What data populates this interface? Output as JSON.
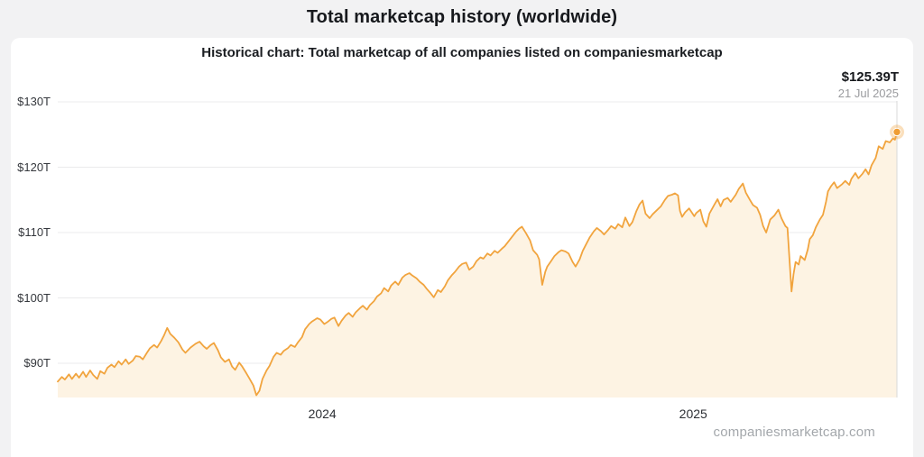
{
  "page": {
    "title": "Total marketcap history (worldwide)",
    "watermark": "companiesmarketcap.com"
  },
  "card": {
    "subtitle": "Historical chart: Total marketcap of all companies listed on companiesmarketcap"
  },
  "readout": {
    "value": "$125.39T",
    "date": "21 Jul 2025"
  },
  "colors": {
    "page_bg": "#f2f2f3",
    "card_bg": "#ffffff",
    "line": "#f1a43e",
    "fill": "#fdf3e3",
    "marker": "#ef9d33",
    "marker_halo": "rgba(241,164,62,0.35)",
    "gridline": "#ebebec",
    "crosshair": "#d8d8d8",
    "muted_text": "#9a9b9e"
  },
  "chart_data": {
    "type": "area",
    "title": "Total marketcap history (worldwide)",
    "subtitle": "Historical chart: Total marketcap of all companies listed on companiesmarketcap",
    "unit": "trillion USD",
    "grid": true,
    "legend": "none",
    "x_range": [
      "2023-04-15",
      "2025-07-21"
    ],
    "ylim": [
      84.5,
      131.8
    ],
    "y_ticks": [
      {
        "label": "$130T",
        "value": 130
      },
      {
        "label": "$120T",
        "value": 120
      },
      {
        "label": "$110T",
        "value": 110
      },
      {
        "label": "$100T",
        "value": 100
      },
      {
        "label": "$90T",
        "value": 90
      }
    ],
    "x_ticks": [
      {
        "label": "2024",
        "date": "2024-01-01"
      },
      {
        "label": "2025",
        "date": "2025-01-01"
      }
    ],
    "last_point": {
      "date": "2025-07-21",
      "value": 125.39,
      "display_value": "$125.39T",
      "display_date": "21 Jul 2025"
    },
    "series": [
      {
        "name": "Total marketcap of all companies",
        "points": [
          [
            "2023-04-15",
            87.2
          ],
          [
            "2023-04-19",
            87.9
          ],
          [
            "2023-04-22",
            87.5
          ],
          [
            "2023-04-26",
            88.3
          ],
          [
            "2023-04-29",
            87.6
          ],
          [
            "2023-05-03",
            88.4
          ],
          [
            "2023-05-06",
            87.8
          ],
          [
            "2023-05-10",
            88.7
          ],
          [
            "2023-05-13",
            87.9
          ],
          [
            "2023-05-17",
            88.9
          ],
          [
            "2023-05-20",
            88.2
          ],
          [
            "2023-05-24",
            87.6
          ],
          [
            "2023-05-27",
            88.8
          ],
          [
            "2023-05-31",
            88.4
          ],
          [
            "2023-06-03",
            89.3
          ],
          [
            "2023-06-07",
            89.8
          ],
          [
            "2023-06-10",
            89.4
          ],
          [
            "2023-06-14",
            90.3
          ],
          [
            "2023-06-17",
            89.8
          ],
          [
            "2023-06-21",
            90.6
          ],
          [
            "2023-06-24",
            89.9
          ],
          [
            "2023-06-28",
            90.4
          ],
          [
            "2023-07-01",
            91.1
          ],
          [
            "2023-07-05",
            91.0
          ],
          [
            "2023-07-08",
            90.6
          ],
          [
            "2023-07-12",
            91.6
          ],
          [
            "2023-07-15",
            92.3
          ],
          [
            "2023-07-19",
            92.8
          ],
          [
            "2023-07-22",
            92.4
          ],
          [
            "2023-07-26",
            93.4
          ],
          [
            "2023-07-29",
            94.3
          ],
          [
            "2023-08-01",
            95.4
          ],
          [
            "2023-08-04",
            94.5
          ],
          [
            "2023-08-08",
            93.9
          ],
          [
            "2023-08-12",
            93.2
          ],
          [
            "2023-08-16",
            92.1
          ],
          [
            "2023-08-19",
            91.6
          ],
          [
            "2023-08-24",
            92.4
          ],
          [
            "2023-08-29",
            93.0
          ],
          [
            "2023-09-02",
            93.3
          ],
          [
            "2023-09-06",
            92.6
          ],
          [
            "2023-09-09",
            92.2
          ],
          [
            "2023-09-13",
            92.8
          ],
          [
            "2023-09-16",
            93.1
          ],
          [
            "2023-09-20",
            92.0
          ],
          [
            "2023-09-23",
            90.9
          ],
          [
            "2023-09-27",
            90.2
          ],
          [
            "2023-10-01",
            90.6
          ],
          [
            "2023-10-04",
            89.5
          ],
          [
            "2023-10-07",
            89.0
          ],
          [
            "2023-10-11",
            90.1
          ],
          [
            "2023-10-14",
            89.5
          ],
          [
            "2023-10-18",
            88.5
          ],
          [
            "2023-10-21",
            87.7
          ],
          [
            "2023-10-25",
            86.6
          ],
          [
            "2023-10-28",
            85.1
          ],
          [
            "2023-10-31",
            85.8
          ],
          [
            "2023-11-03",
            87.6
          ],
          [
            "2023-11-07",
            88.9
          ],
          [
            "2023-11-10",
            89.6
          ],
          [
            "2023-11-14",
            91.0
          ],
          [
            "2023-11-17",
            91.6
          ],
          [
            "2023-11-21",
            91.3
          ],
          [
            "2023-11-24",
            91.9
          ],
          [
            "2023-11-28",
            92.3
          ],
          [
            "2023-12-01",
            92.8
          ],
          [
            "2023-12-05",
            92.5
          ],
          [
            "2023-12-08",
            93.2
          ],
          [
            "2023-12-12",
            94.0
          ],
          [
            "2023-12-15",
            95.2
          ],
          [
            "2023-12-19",
            96.0
          ],
          [
            "2023-12-22",
            96.4
          ],
          [
            "2023-12-27",
            96.9
          ],
          [
            "2023-12-30",
            96.7
          ],
          [
            "2024-01-03",
            96.0
          ],
          [
            "2024-01-06",
            96.3
          ],
          [
            "2024-01-10",
            96.8
          ],
          [
            "2024-01-13",
            97.0
          ],
          [
            "2024-01-17",
            95.7
          ],
          [
            "2024-01-20",
            96.5
          ],
          [
            "2024-01-24",
            97.3
          ],
          [
            "2024-01-27",
            97.7
          ],
          [
            "2024-01-31",
            97.1
          ],
          [
            "2024-02-03",
            97.8
          ],
          [
            "2024-02-07",
            98.4
          ],
          [
            "2024-02-10",
            98.8
          ],
          [
            "2024-02-14",
            98.2
          ],
          [
            "2024-02-17",
            98.9
          ],
          [
            "2024-02-21",
            99.5
          ],
          [
            "2024-02-24",
            100.2
          ],
          [
            "2024-02-28",
            100.7
          ],
          [
            "2024-03-02",
            101.5
          ],
          [
            "2024-03-06",
            101.0
          ],
          [
            "2024-03-09",
            101.9
          ],
          [
            "2024-03-13",
            102.5
          ],
          [
            "2024-03-16",
            102.0
          ],
          [
            "2024-03-20",
            103.1
          ],
          [
            "2024-03-23",
            103.5
          ],
          [
            "2024-03-27",
            103.8
          ],
          [
            "2024-03-30",
            103.4
          ],
          [
            "2024-04-03",
            103.0
          ],
          [
            "2024-04-06",
            102.5
          ],
          [
            "2024-04-10",
            102.0
          ],
          [
            "2024-04-13",
            101.4
          ],
          [
            "2024-04-17",
            100.7
          ],
          [
            "2024-04-20",
            100.1
          ],
          [
            "2024-04-24",
            101.2
          ],
          [
            "2024-04-27",
            100.9
          ],
          [
            "2024-05-01",
            101.8
          ],
          [
            "2024-05-04",
            102.7
          ],
          [
            "2024-05-08",
            103.5
          ],
          [
            "2024-05-11",
            104.0
          ],
          [
            "2024-05-15",
            104.8
          ],
          [
            "2024-05-18",
            105.2
          ],
          [
            "2024-05-22",
            105.4
          ],
          [
            "2024-05-25",
            104.3
          ],
          [
            "2024-05-29",
            104.8
          ],
          [
            "2024-06-01",
            105.6
          ],
          [
            "2024-06-05",
            106.2
          ],
          [
            "2024-06-08",
            106.0
          ],
          [
            "2024-06-12",
            106.8
          ],
          [
            "2024-06-15",
            106.5
          ],
          [
            "2024-06-19",
            107.2
          ],
          [
            "2024-06-22",
            106.9
          ],
          [
            "2024-06-26",
            107.5
          ],
          [
            "2024-06-29",
            107.9
          ],
          [
            "2024-07-03",
            108.7
          ],
          [
            "2024-07-06",
            109.3
          ],
          [
            "2024-07-10",
            110.1
          ],
          [
            "2024-07-13",
            110.6
          ],
          [
            "2024-07-16",
            110.9
          ],
          [
            "2024-07-20",
            109.9
          ],
          [
            "2024-07-24",
            108.8
          ],
          [
            "2024-07-27",
            107.3
          ],
          [
            "2024-07-31",
            106.6
          ],
          [
            "2024-08-02",
            105.9
          ],
          [
            "2024-08-05",
            102.0
          ],
          [
            "2024-08-08",
            104.0
          ],
          [
            "2024-08-10",
            104.8
          ],
          [
            "2024-08-14",
            105.7
          ],
          [
            "2024-08-17",
            106.4
          ],
          [
            "2024-08-21",
            107.0
          ],
          [
            "2024-08-24",
            107.3
          ],
          [
            "2024-08-28",
            107.1
          ],
          [
            "2024-08-31",
            106.8
          ],
          [
            "2024-09-04",
            105.5
          ],
          [
            "2024-09-07",
            104.8
          ],
          [
            "2024-09-11",
            105.9
          ],
          [
            "2024-09-14",
            107.2
          ],
          [
            "2024-09-18",
            108.4
          ],
          [
            "2024-09-21",
            109.3
          ],
          [
            "2024-09-25",
            110.2
          ],
          [
            "2024-09-28",
            110.7
          ],
          [
            "2024-10-02",
            110.2
          ],
          [
            "2024-10-05",
            109.7
          ],
          [
            "2024-10-09",
            110.4
          ],
          [
            "2024-10-12",
            111.0
          ],
          [
            "2024-10-16",
            110.6
          ],
          [
            "2024-10-19",
            111.3
          ],
          [
            "2024-10-23",
            110.8
          ],
          [
            "2024-10-26",
            112.3
          ],
          [
            "2024-10-30",
            111.0
          ],
          [
            "2024-11-02",
            111.6
          ],
          [
            "2024-11-06",
            113.3
          ],
          [
            "2024-11-09",
            114.3
          ],
          [
            "2024-11-12",
            114.9
          ],
          [
            "2024-11-15",
            112.9
          ],
          [
            "2024-11-19",
            112.2
          ],
          [
            "2024-11-22",
            112.8
          ],
          [
            "2024-11-26",
            113.4
          ],
          [
            "2024-11-30",
            114.0
          ],
          [
            "2024-12-04",
            115.0
          ],
          [
            "2024-12-07",
            115.6
          ],
          [
            "2024-12-11",
            115.8
          ],
          [
            "2024-12-14",
            116.0
          ],
          [
            "2024-12-17",
            115.7
          ],
          [
            "2024-12-19",
            113.3
          ],
          [
            "2024-12-21",
            112.4
          ],
          [
            "2024-12-24",
            113.1
          ],
          [
            "2024-12-28",
            113.7
          ],
          [
            "2025-01-02",
            112.5
          ],
          [
            "2025-01-04",
            113.0
          ],
          [
            "2025-01-08",
            113.5
          ],
          [
            "2025-01-11",
            111.7
          ],
          [
            "2025-01-14",
            110.9
          ],
          [
            "2025-01-17",
            112.9
          ],
          [
            "2025-01-22",
            114.3
          ],
          [
            "2025-01-25",
            115.1
          ],
          [
            "2025-01-28",
            114.0
          ],
          [
            "2025-01-31",
            115.0
          ],
          [
            "2025-02-04",
            115.3
          ],
          [
            "2025-02-07",
            114.7
          ],
          [
            "2025-02-12",
            115.8
          ],
          [
            "2025-02-15",
            116.7
          ],
          [
            "2025-02-19",
            117.5
          ],
          [
            "2025-02-22",
            116.1
          ],
          [
            "2025-02-26",
            115.0
          ],
          [
            "2025-03-01",
            114.2
          ],
          [
            "2025-03-05",
            113.8
          ],
          [
            "2025-03-08",
            112.7
          ],
          [
            "2025-03-11",
            111.0
          ],
          [
            "2025-03-14",
            110.0
          ],
          [
            "2025-03-18",
            112.0
          ],
          [
            "2025-03-22",
            112.6
          ],
          [
            "2025-03-26",
            113.5
          ],
          [
            "2025-03-29",
            112.2
          ],
          [
            "2025-04-02",
            111.0
          ],
          [
            "2025-04-04",
            110.7
          ],
          [
            "2025-04-08",
            101.0
          ],
          [
            "2025-04-10",
            103.6
          ],
          [
            "2025-04-12",
            105.5
          ],
          [
            "2025-04-15",
            105.1
          ],
          [
            "2025-04-17",
            106.4
          ],
          [
            "2025-04-21",
            105.8
          ],
          [
            "2025-04-24",
            107.4
          ],
          [
            "2025-04-26",
            109.0
          ],
          [
            "2025-04-29",
            109.6
          ],
          [
            "2025-05-02",
            110.8
          ],
          [
            "2025-05-06",
            112.0
          ],
          [
            "2025-05-09",
            112.7
          ],
          [
            "2025-05-12",
            114.7
          ],
          [
            "2025-05-14",
            116.3
          ],
          [
            "2025-05-17",
            117.1
          ],
          [
            "2025-05-20",
            117.7
          ],
          [
            "2025-05-23",
            116.8
          ],
          [
            "2025-05-28",
            117.4
          ],
          [
            "2025-05-31",
            117.9
          ],
          [
            "2025-06-04",
            117.3
          ],
          [
            "2025-06-06",
            118.2
          ],
          [
            "2025-06-10",
            119.1
          ],
          [
            "2025-06-13",
            118.3
          ],
          [
            "2025-06-17",
            119.0
          ],
          [
            "2025-06-20",
            119.7
          ],
          [
            "2025-06-23",
            118.9
          ],
          [
            "2025-06-26",
            120.3
          ],
          [
            "2025-06-30",
            121.4
          ],
          [
            "2025-07-03",
            123.2
          ],
          [
            "2025-07-07",
            122.8
          ],
          [
            "2025-07-10",
            124.0
          ],
          [
            "2025-07-14",
            123.8
          ],
          [
            "2025-07-17",
            124.4
          ],
          [
            "2025-07-19",
            124.2
          ],
          [
            "2025-07-21",
            125.39
          ]
        ]
      }
    ]
  }
}
